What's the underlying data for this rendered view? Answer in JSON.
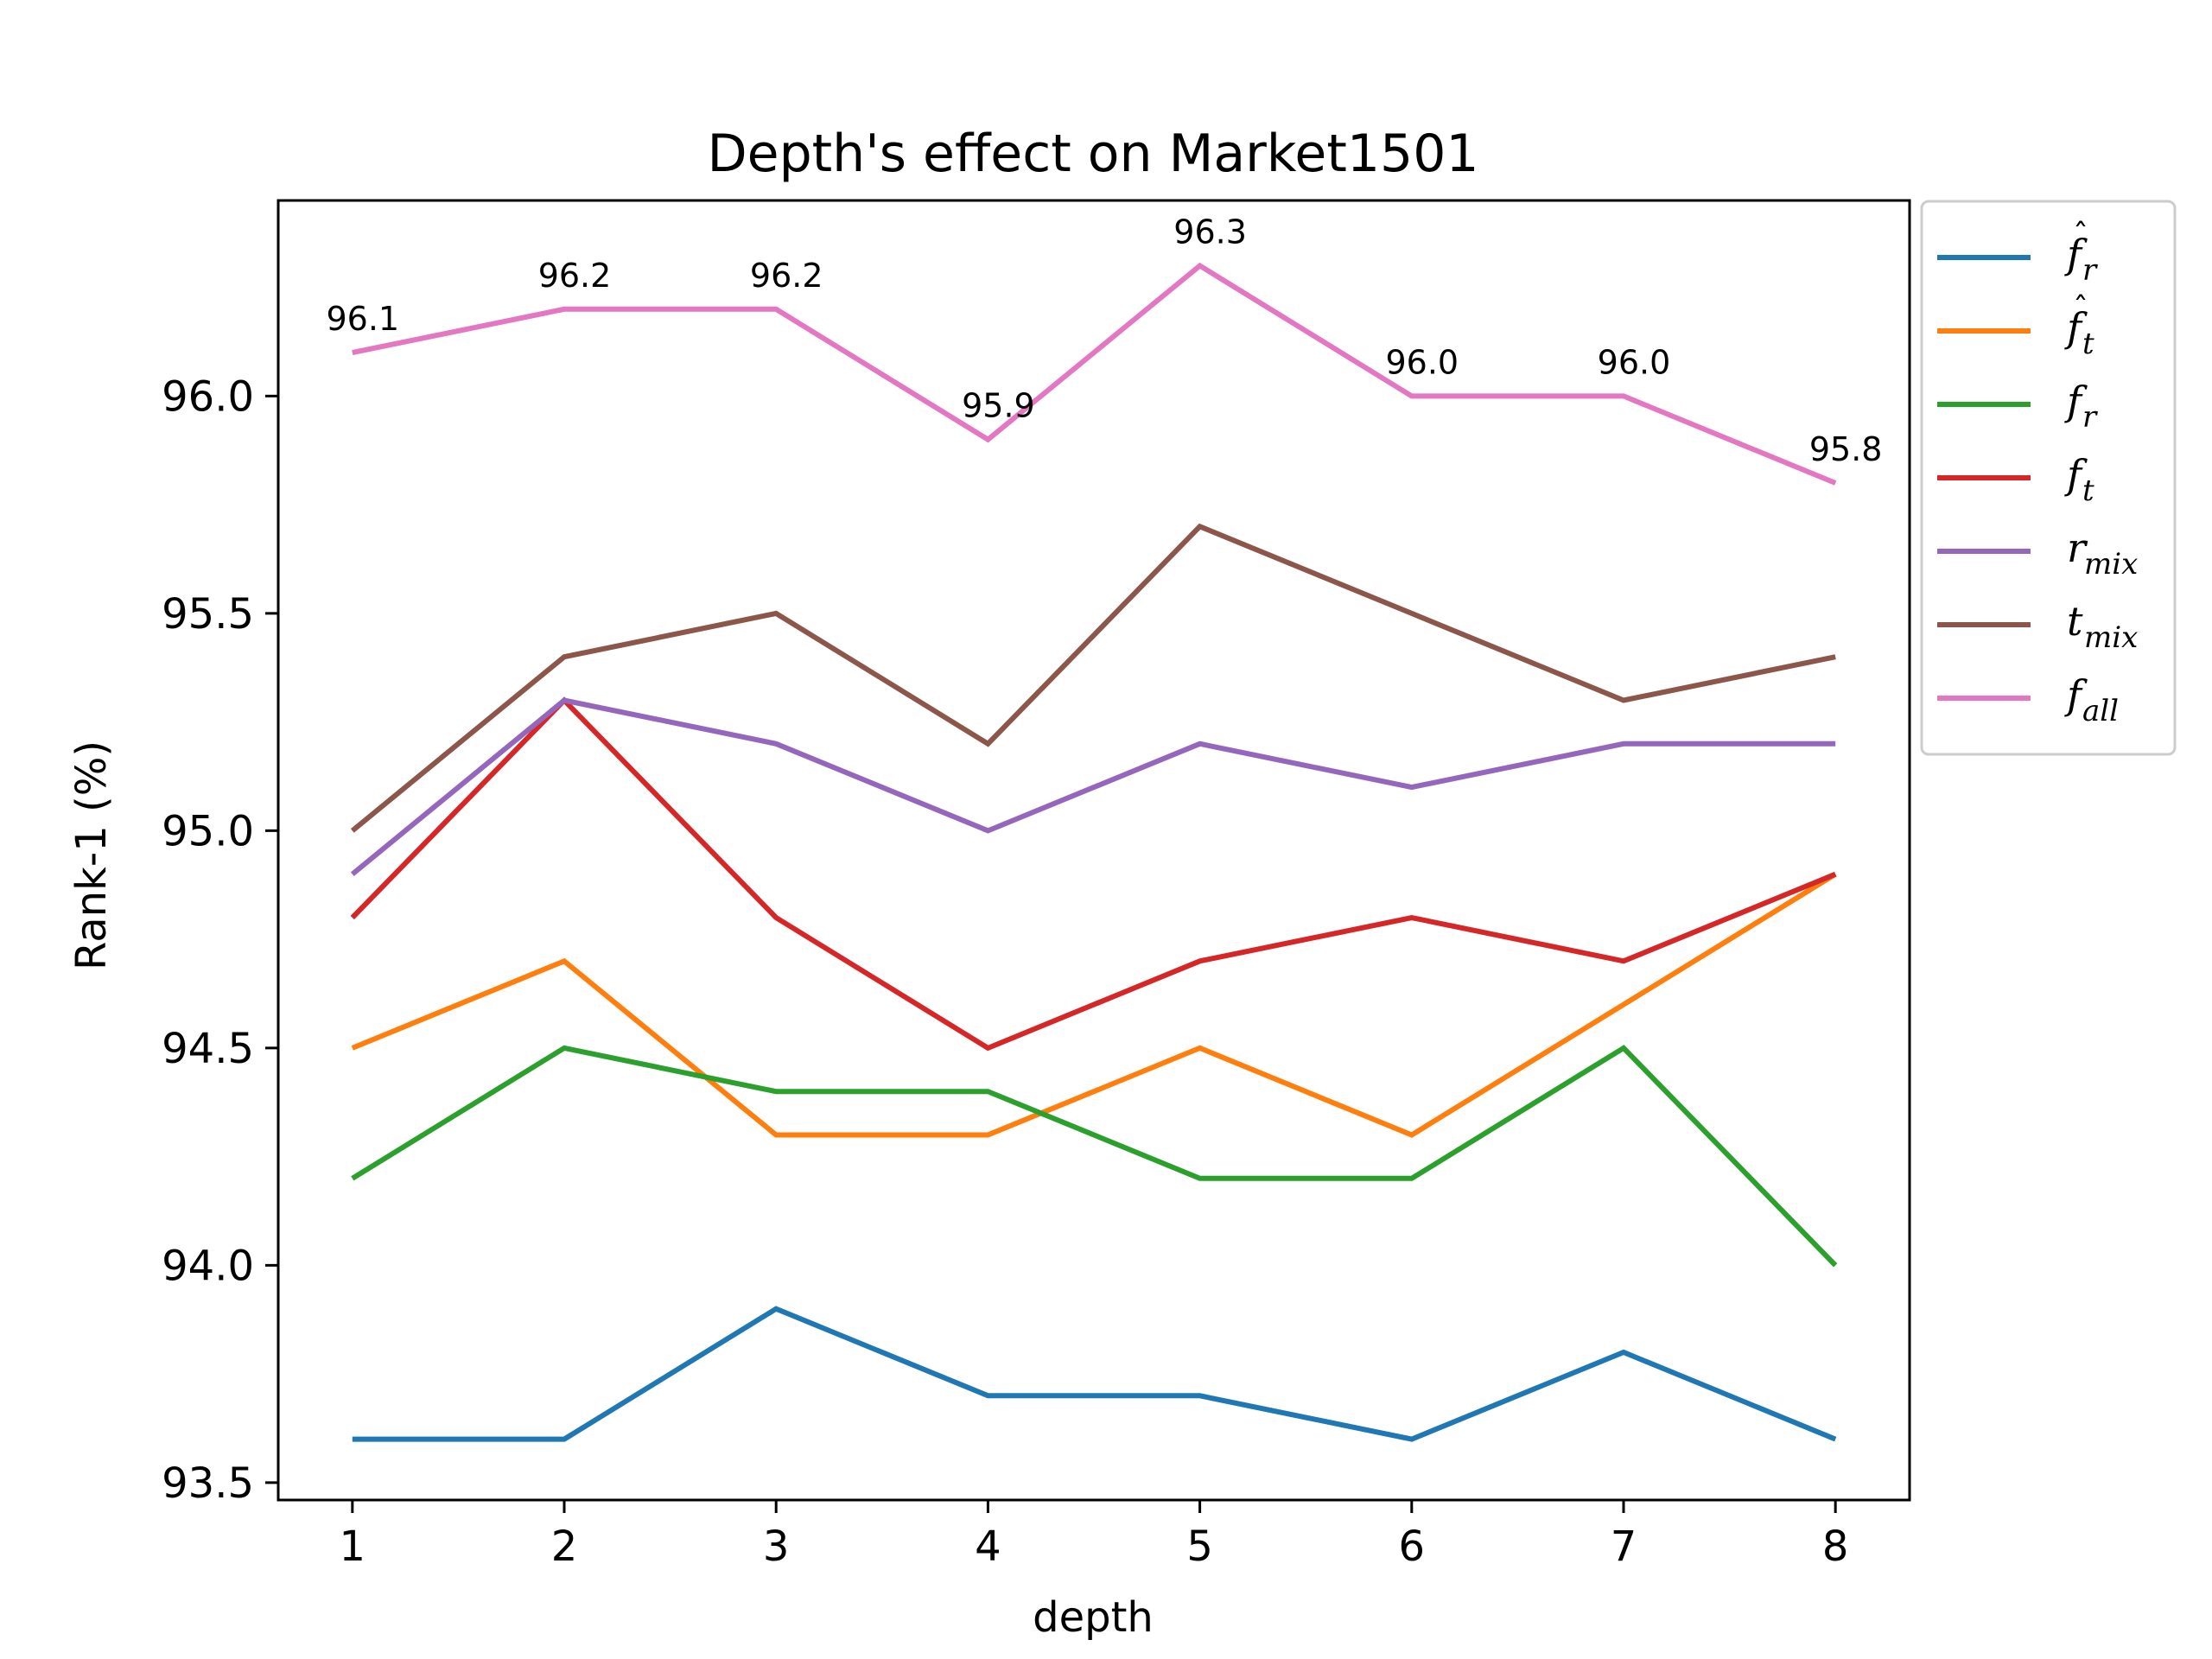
{
  "chart_data": {
    "type": "line",
    "title": "Depth's effect on Market1501",
    "xlabel": "depth",
    "ylabel": "Rank-1 (%)",
    "x": [
      1,
      2,
      3,
      4,
      5,
      6,
      7,
      8
    ],
    "xlim": [
      0.65,
      8.35
    ],
    "ylim": [
      93.46,
      96.45
    ],
    "yticks": [
      93.5,
      94.0,
      94.5,
      95.0,
      95.5,
      96.0
    ],
    "ytick_labels": [
      "93.5",
      "94.0",
      "94.5",
      "95.0",
      "95.5",
      "96.0"
    ],
    "xtick_labels": [
      "1",
      "2",
      "3",
      "4",
      "5",
      "6",
      "7",
      "8"
    ],
    "grid": false,
    "legend": {
      "position": "outside-right-top"
    },
    "series": [
      {
        "name": "f̂r",
        "base": "f",
        "sub": "r",
        "hat": true,
        "color": "#1f77b4",
        "values": [
          93.6,
          93.6,
          93.9,
          93.7,
          93.7,
          93.6,
          93.8,
          93.6
        ]
      },
      {
        "name": "f̂t",
        "base": "f",
        "sub": "t",
        "hat": true,
        "color": "#ff7f0e",
        "values": [
          94.5,
          94.7,
          94.3,
          94.3,
          94.5,
          94.3,
          94.6,
          94.9
        ]
      },
      {
        "name": "fr",
        "base": "f",
        "sub": "r",
        "hat": false,
        "color": "#2ca02c",
        "values": [
          94.2,
          94.5,
          94.4,
          94.4,
          94.2,
          94.2,
          94.5,
          94.0
        ]
      },
      {
        "name": "ft",
        "base": "f",
        "sub": "t",
        "hat": false,
        "color": "#d62728",
        "values": [
          94.8,
          95.3,
          94.8,
          94.5,
          94.7,
          94.8,
          94.7,
          94.9
        ]
      },
      {
        "name": "rmix",
        "base": "r",
        "sub": "mix",
        "hat": false,
        "color": "#9467bd",
        "values": [
          94.9,
          95.3,
          95.2,
          95.0,
          95.2,
          95.1,
          95.2,
          95.2
        ]
      },
      {
        "name": "tmix",
        "base": "t",
        "sub": "mix",
        "hat": false,
        "color": "#8c564b",
        "values": [
          95.0,
          95.4,
          95.5,
          95.2,
          95.7,
          95.5,
          95.3,
          95.4
        ]
      },
      {
        "name": "fall",
        "base": "f",
        "sub": "all",
        "hat": false,
        "color": "#e377c2",
        "values": [
          96.1,
          96.2,
          96.2,
          95.9,
          96.3,
          96.0,
          96.0,
          95.8
        ]
      }
    ],
    "annotations": {
      "series_index": 6,
      "labels": [
        "96.1",
        "96.2",
        "96.2",
        "95.9",
        "96.3",
        "96.0",
        "96.0",
        "95.8"
      ]
    }
  }
}
